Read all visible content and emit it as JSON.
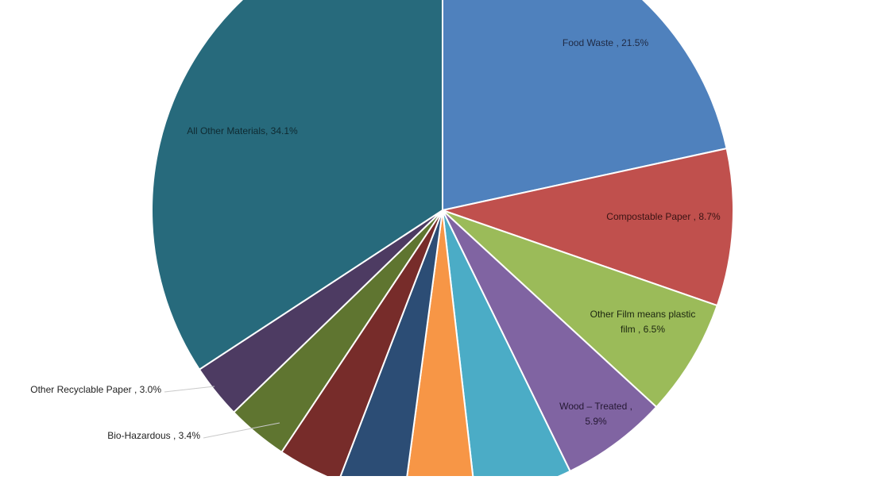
{
  "chart_data": {
    "type": "pie",
    "title": "",
    "start_angle_deg": 0,
    "direction": "clockwise",
    "slices": [
      {
        "label": "Food Waste , 21.5%",
        "value": 21.5,
        "color": "#4F81BD",
        "label_lines": [
          "Food Waste , 21.5%"
        ]
      },
      {
        "label": "Compostable Paper , 8.7%",
        "value": 8.7,
        "color": "#C0504D",
        "label_lines": [
          "Compostable Paper , 8.7%"
        ]
      },
      {
        "label": "Other Film means plastic film , 6.5%",
        "value": 6.5,
        "color": "#9BBB59",
        "label_lines": [
          "Other Film means plastic",
          "film  , 6.5%"
        ]
      },
      {
        "label": "Wood – Treated , 5.9%",
        "value": 5.9,
        "color": "#8064A2",
        "label_lines": [
          "Wood – Treated ,",
          "5.9%"
        ]
      },
      {
        "label": "",
        "value": 5.4,
        "color": "#4BACC6",
        "label_lines": []
      },
      {
        "label": "",
        "value": 3.9,
        "color": "#F79646",
        "label_lines": []
      },
      {
        "label": "",
        "value": 3.7,
        "color": "#2C4D75",
        "label_lines": []
      },
      {
        "label": "",
        "value": 3.5,
        "color": "#772C2A",
        "label_lines": []
      },
      {
        "label": "Bio-Hazardous , 3.4%",
        "value": 3.4,
        "color": "#5F7530",
        "label_lines": [
          "Bio-Hazardous , 3.4%"
        ]
      },
      {
        "label": "Other Recyclable Paper , 3.0%",
        "value": 3.0,
        "color": "#4D3B62",
        "label_lines": [
          "Other Recyclable Paper , 3.0%"
        ]
      },
      {
        "label": "All Other Materials, 34.1%",
        "value": 34.1,
        "color": "#276A7C",
        "label_lines": [
          "All Other Materials, 34.1%"
        ]
      }
    ]
  }
}
